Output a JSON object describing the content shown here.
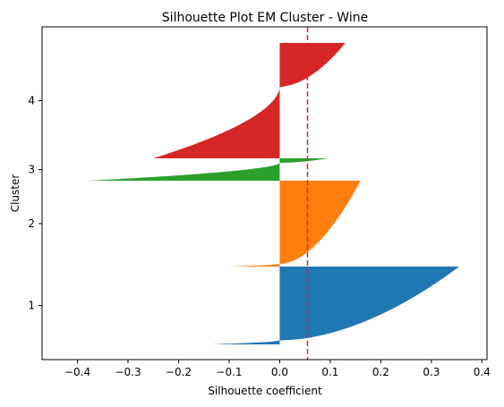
{
  "chart_data": {
    "type": "silhouette",
    "title": "Silhouette Plot EM Cluster - Wine",
    "xlabel": "Silhouette coefficient",
    "ylabel": "Cluster",
    "xlim": [
      -0.47,
      0.41
    ],
    "xticks": [
      -0.4,
      -0.3,
      -0.2,
      -0.1,
      0.0,
      0.1,
      0.2,
      0.3,
      0.4
    ],
    "xtick_labels": [
      "−0.4",
      "−0.3",
      "−0.2",
      "−0.1",
      "0.0",
      "0.1",
      "0.2",
      "0.3",
      "0.4"
    ],
    "average_silhouette": 0.055,
    "average_line_color": "#d62728",
    "clusters": [
      {
        "label": "1",
        "color": "#1f77b4",
        "min": -0.135,
        "max": 0.355,
        "neg_frac": 0.05
      },
      {
        "label": "2",
        "color": "#ff7f0e",
        "min": -0.1,
        "max": 0.16,
        "neg_frac": 0.03
      },
      {
        "label": "3",
        "color": "#2ca02c",
        "min": -0.38,
        "max": 0.095,
        "neg_frac": 0.8
      },
      {
        "label": "4",
        "color": "#d62728",
        "min": -0.25,
        "max": 0.13,
        "neg_frac": 0.62
      }
    ],
    "grid": false,
    "legend": "none"
  }
}
